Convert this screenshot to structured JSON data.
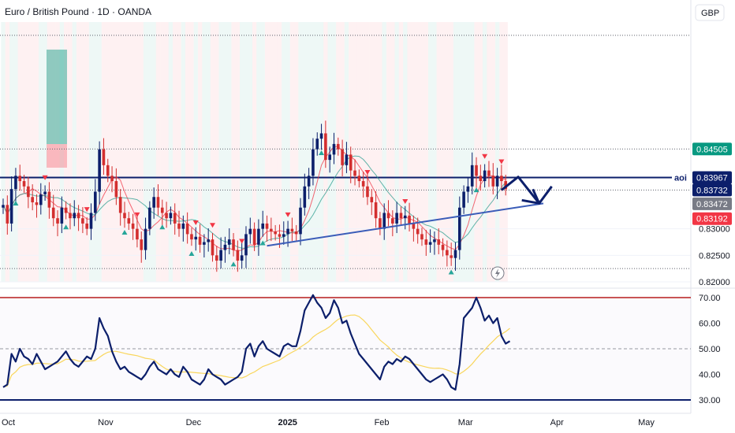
{
  "header": {
    "title": "Euro / British Pound · 1D · OANDA",
    "currency": "GBP"
  },
  "chart_data": [
    {
      "type": "candlestick",
      "ylim": [
        0.82,
        0.869
      ],
      "y_ticks": [
        "0.82000",
        "0.82500",
        "0.83000"
      ],
      "price_labels": [
        {
          "text": "0.84505",
          "value": 0.84505,
          "color": "#089981"
        },
        {
          "text": "0.83967",
          "value": 0.83967,
          "color": "#0c1f6b",
          "prefix": "aoi"
        },
        {
          "text": "0.83732",
          "value": 0.83732,
          "color": "#0c1f6b"
        },
        {
          "text": "0.83472",
          "value": 0.83472,
          "color": "#787b86"
        },
        {
          "text": "0.83192",
          "value": 0.83192,
          "color": "#f23645"
        }
      ],
      "x_labels": [
        {
          "text": "Oct",
          "bar": 0
        },
        {
          "text": "Nov",
          "bar": 23
        },
        {
          "text": "Dec",
          "bar": 44
        },
        {
          "text": "2025",
          "bar": 66
        },
        {
          "text": "Feb",
          "bar": 89
        },
        {
          "text": "Mar",
          "bar": 109
        },
        {
          "text": "Apr",
          "bar": 131
        },
        {
          "text": "May",
          "bar": 152
        }
      ],
      "aoi_level": 0.83967,
      "dotted_levels": [
        0.8665,
        0.84505,
        0.83732,
        0.8225
      ],
      "closes": [
        0.8345,
        0.831,
        0.8375,
        0.84,
        0.839,
        0.838,
        0.836,
        0.835,
        0.8345,
        0.8365,
        0.837,
        0.834,
        0.832,
        0.831,
        0.834,
        0.833,
        0.832,
        0.833,
        0.832,
        0.831,
        0.83,
        0.833,
        0.837,
        0.845,
        0.842,
        0.84,
        0.839,
        0.836,
        0.833,
        0.832,
        0.831,
        0.83,
        0.828,
        0.826,
        0.83,
        0.834,
        0.836,
        0.834,
        0.833,
        0.832,
        0.833,
        0.831,
        0.83,
        0.831,
        0.829,
        0.828,
        0.8285,
        0.827,
        0.8275,
        0.828,
        0.825,
        0.824,
        0.826,
        0.827,
        0.828,
        0.826,
        0.824,
        0.825,
        0.829,
        0.83,
        0.827,
        0.83,
        0.831,
        0.83,
        0.8295,
        0.829,
        0.8285,
        0.829,
        0.83,
        0.8295,
        0.829,
        0.834,
        0.838,
        0.84,
        0.845,
        0.847,
        0.848,
        0.843,
        0.844,
        0.846,
        0.845,
        0.842,
        0.844,
        0.841,
        0.84,
        0.839,
        0.838,
        0.836,
        0.835,
        0.832,
        0.83,
        0.833,
        0.832,
        0.831,
        0.833,
        0.832,
        0.8325,
        0.831,
        0.83,
        0.829,
        0.828,
        0.827,
        0.8275,
        0.828,
        0.827,
        0.826,
        0.825,
        0.8245,
        0.826,
        0.834,
        0.837,
        0.838,
        0.842,
        0.84,
        0.839,
        0.841,
        0.84,
        0.838,
        0.84,
        0.839,
        0.8375
      ],
      "buy_signals": [
        3,
        15,
        29,
        38,
        45,
        55,
        62,
        76,
        107,
        113
      ],
      "sell_signals": [
        10,
        20,
        32,
        46,
        50,
        57,
        68,
        87,
        96,
        115,
        119
      ],
      "rsi": {
        "ylim": [
          30,
          70
        ],
        "ticks": [
          "70.00",
          "60.00",
          "50.00",
          "40.00",
          "30.00"
        ],
        "upper": 70,
        "lower": 30,
        "mid": 50,
        "values": [
          35,
          36,
          48,
          45,
          50,
          47,
          46,
          44,
          48,
          45,
          42,
          43,
          44,
          45,
          47,
          49,
          46,
          44,
          43,
          45,
          47,
          46,
          50,
          62,
          58,
          55,
          49,
          45,
          42,
          43,
          41,
          40,
          39,
          38,
          40,
          43,
          45,
          42,
          41,
          40,
          42,
          40,
          39,
          43,
          41,
          38,
          37,
          36,
          38,
          42,
          40,
          39,
          38,
          36,
          37,
          38,
          39,
          41,
          50,
          52,
          47,
          51,
          53,
          50,
          49,
          48,
          47,
          51,
          52,
          51,
          51,
          57,
          65,
          68,
          71,
          68,
          66,
          62,
          64,
          69,
          66,
          60,
          61,
          56,
          52,
          48,
          46,
          44,
          42,
          40,
          38,
          43,
          45,
          44,
          46,
          45,
          47,
          46,
          44,
          42,
          40,
          38,
          37,
          38,
          39,
          40,
          38,
          35,
          34,
          44,
          62,
          64,
          66,
          70,
          66,
          61,
          63,
          60,
          62,
          55,
          52,
          53
        ]
      },
      "trend_lines": [
        {
          "from": [
            63,
            0.8268
          ],
          "to": [
            129,
            0.8348
          ]
        }
      ],
      "projection": [
        [
          119,
          0.8373
        ],
        [
          123,
          0.8398
        ],
        [
          128,
          0.8348
        ],
        [
          131,
          0.838
        ]
      ]
    }
  ]
}
